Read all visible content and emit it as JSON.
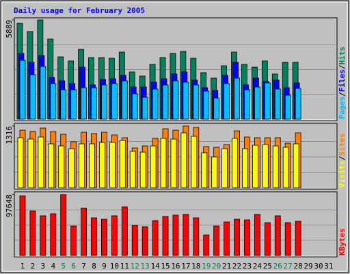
{
  "chart_data": [
    {
      "type": "bar",
      "title": "Daily usage for February 2005",
      "ylim": [
        0,
        5889
      ],
      "yticks": [
        5889
      ],
      "legend_position": "right",
      "legend_separator": "/",
      "series": [
        {
          "name": "Hits",
          "color": "#00805c",
          "values": [
            5685,
            5198,
            5889,
            4751,
            3695,
            3452,
            4142,
            3655,
            3655,
            3614,
            3980,
            2802,
            2558,
            3249,
            3655,
            3899,
            4020,
            3614,
            2761,
            2436,
            3168,
            3980,
            3249,
            3086,
            3452,
            2680,
            3371,
            3371,
            null,
            null,
            null
          ]
        },
        {
          "name": "Files",
          "color": "#0000ff",
          "values": [
            3899,
            3371,
            3777,
            2477,
            2274,
            2112,
            3086,
            2031,
            2355,
            2396,
            2599,
            1909,
            1909,
            2193,
            2396,
            2680,
            2802,
            2315,
            1868,
            1706,
            2599,
            3371,
            2031,
            2437,
            2234,
            2315,
            1868,
            2152,
            null,
            null,
            null
          ]
        },
        {
          "name": "Pages",
          "color": "#00c0ff",
          "values": [
            3492,
            2640,
            3127,
            2112,
            1746,
            1746,
            1868,
            1868,
            2031,
            2112,
            2274,
            1503,
            1300,
            1787,
            2031,
            2274,
            2193,
            2031,
            1665,
            1259,
            2112,
            2437,
            1746,
            1909,
            2152,
            1787,
            1421,
            1827,
            null,
            null,
            null
          ]
        }
      ]
    },
    {
      "type": "bar",
      "ylim": [
        0,
        1316
      ],
      "yticks": [
        1316
      ],
      "legend_position": "right",
      "legend_separator": "/",
      "series": [
        {
          "name": "Sites",
          "color": "#ff8000",
          "values": [
            1228,
            1199,
            1272,
            1199,
            1140,
            980,
            1184,
            1155,
            1184,
            1126,
            1067,
            848,
            892,
            1053,
            1257,
            1228,
            1316,
            1287,
            877,
            863,
            921,
            1213,
            1082,
            1067,
            1067,
            1067,
            950,
            1170,
            null,
            null,
            null
          ]
        },
        {
          "name": "Visits",
          "color": "#ffff00",
          "values": [
            1067,
            1038,
            1082,
            936,
            892,
            833,
            936,
            936,
            965,
            965,
            1009,
            775,
            760,
            892,
            1053,
            1038,
            1170,
            1097,
            746,
            658,
            833,
            1053,
            833,
            906,
            921,
            892,
            863,
            936,
            null,
            null,
            null
          ]
        }
      ]
    },
    {
      "type": "bar",
      "ylim": [
        0,
        97648
      ],
      "yticks": [
        97648
      ],
      "legend_position": "right",
      "categories": [
        "1",
        "2",
        "3",
        "4",
        "5",
        "6",
        "7",
        "8",
        "9",
        "10",
        "11",
        "12",
        "13",
        "14",
        "15",
        "16",
        "17",
        "18",
        "19",
        "20",
        "21",
        "22",
        "23",
        "24",
        "25",
        "26",
        "27",
        "28",
        "29",
        "30",
        "31"
      ],
      "category_colors": [
        "#000000",
        "#000000",
        "#000000",
        "#000000",
        "#00805c",
        "#00805c",
        "#000000",
        "#000000",
        "#000000",
        "#000000",
        "#000000",
        "#00805c",
        "#00805c",
        "#000000",
        "#000000",
        "#000000",
        "#000000",
        "#000000",
        "#00805c",
        "#00805c",
        "#000000",
        "#000000",
        "#000000",
        "#000000",
        "#000000",
        "#00805c",
        "#00805c",
        "#000000",
        "#000000",
        "#000000",
        "#000000"
      ],
      "series": [
        {
          "name": "KBytes",
          "color": "#ff0000",
          "values": [
            95456,
            71318,
            63638,
            66929,
            97648,
            47180,
            75707,
            60346,
            58152,
            63638,
            77901,
            48277,
            46082,
            55957,
            62540,
            64735,
            65832,
            60346,
            32916,
            47180,
            53763,
            58152,
            57054,
            65832,
            52666,
            63638,
            52666,
            54860,
            null,
            null,
            null
          ]
        }
      ]
    }
  ]
}
